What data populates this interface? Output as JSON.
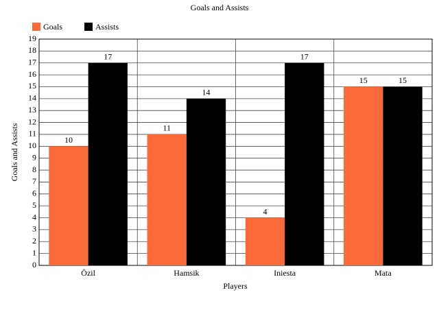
{
  "chart_data": {
    "type": "bar",
    "title": "Goals and Assists",
    "x_label": "Players",
    "y_label": "Goals and Assists",
    "categories": [
      "Özil",
      "Hamsik",
      "Iniesta",
      "Mata"
    ],
    "series": [
      {
        "name": "Goals",
        "color": "#fa6a38",
        "values": [
          10,
          11,
          4,
          15
        ]
      },
      {
        "name": "Assists",
        "color": "#000000",
        "values": [
          17,
          14,
          17,
          15
        ]
      }
    ],
    "ylim": [
      0,
      19
    ],
    "yticks": [
      0,
      1,
      2,
      3,
      4,
      5,
      6,
      7,
      8,
      9,
      10,
      11,
      12,
      13,
      14,
      15,
      16,
      17,
      18,
      19
    ],
    "grid": true,
    "legend": "top-left"
  }
}
